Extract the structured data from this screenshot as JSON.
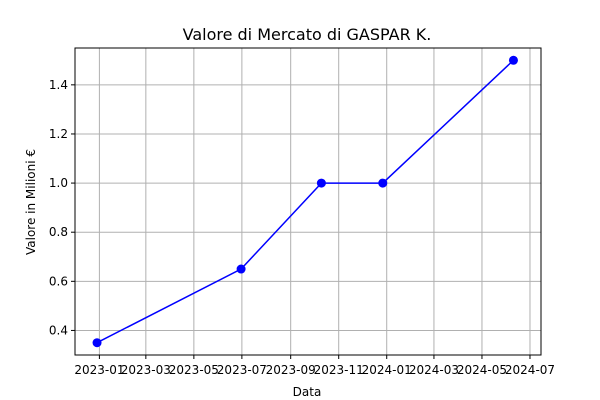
{
  "chart_data": {
    "type": "line",
    "title": "Valore di Mercato di GASPAR K.",
    "xlabel": "Data",
    "ylabel": "Valore in Milioni €",
    "x_ticks": [
      "2023-01",
      "2023-03",
      "2023-05",
      "2023-07",
      "2023-09",
      "2023-11",
      "2024-01",
      "2024-03",
      "2024-05",
      "2024-07"
    ],
    "x_range": [
      "2022-12-01",
      "2024-07-15"
    ],
    "ylim": [
      0.3,
      1.55
    ],
    "y_ticks": [
      0.4,
      0.6,
      0.8,
      1.0,
      1.2,
      1.4
    ],
    "grid": true,
    "line_color": "#0000ff",
    "series": [
      {
        "x": [
          "2022-12-29",
          "2023-06-30",
          "2023-10-10",
          "2023-12-27",
          "2024-06-10"
        ],
        "values": [
          0.35,
          0.65,
          1.0,
          1.0,
          1.5
        ]
      }
    ]
  }
}
